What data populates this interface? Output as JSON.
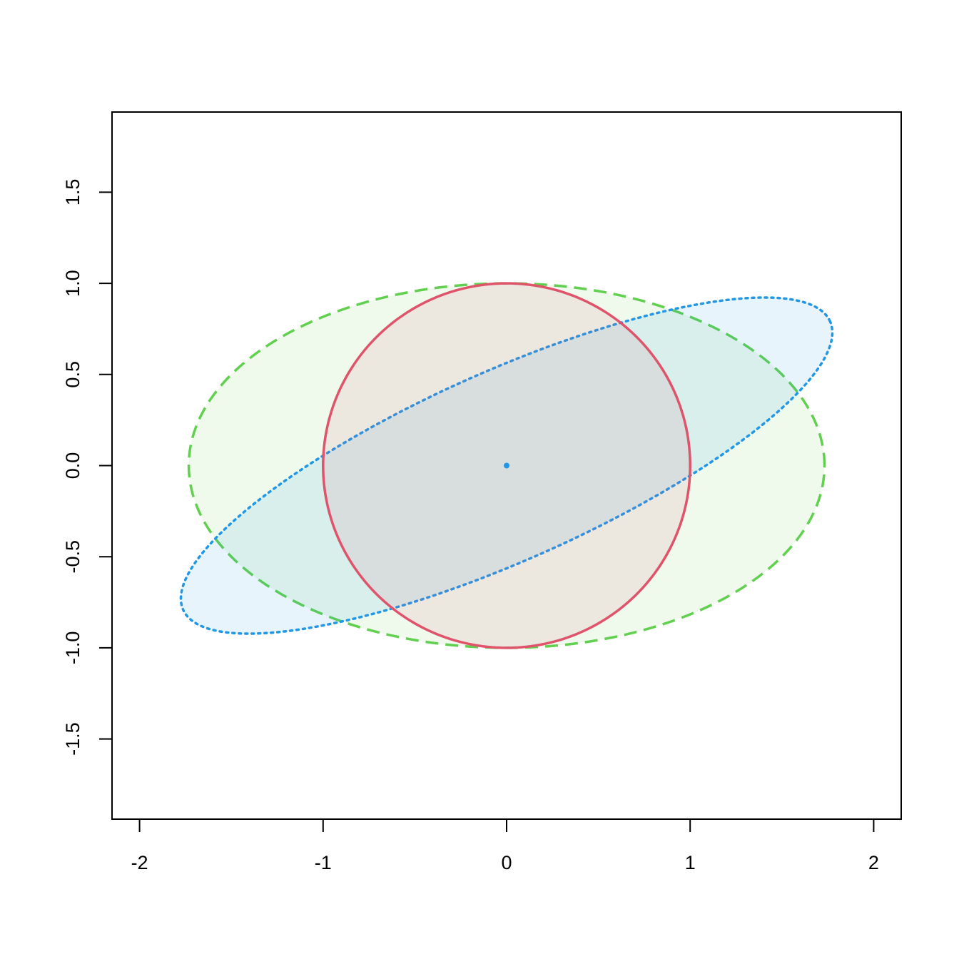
{
  "chart_data": {
    "type": "scatter",
    "title": "",
    "xlabel": "",
    "ylabel": "",
    "xlim": [
      -2.15,
      2.15
    ],
    "ylim": [
      -1.94,
      1.94
    ],
    "x_ticks": [
      -2,
      -1,
      0,
      1,
      2
    ],
    "x_tick_labels": [
      "-2",
      "-1",
      "0",
      "1",
      "2"
    ],
    "y_ticks": [
      -1.5,
      -1.0,
      -0.5,
      0.0,
      0.5,
      1.0,
      1.5
    ],
    "y_tick_labels": [
      "-1.5",
      "-1.0",
      "-0.5",
      "0.0",
      "0.5",
      "1.0",
      "1.5"
    ],
    "grid": false,
    "legend": "none",
    "series": [
      {
        "shape": "ellipse",
        "center": [
          0,
          0
        ],
        "semi_axes": [
          1.732,
          1.0
        ],
        "rotation_deg": 0,
        "line_style": "dashed",
        "color": "#61D04F",
        "fill": "rgba(97,208,79,0.10)"
      },
      {
        "shape": "ellipse",
        "center": [
          0,
          0
        ],
        "semi_axes": [
          1.932,
          0.518
        ],
        "rotation_deg": 24.2,
        "line_style": "dotted",
        "color": "#2297E6",
        "fill": "rgba(34,151,230,0.11)"
      },
      {
        "shape": "circle",
        "center": [
          0,
          0
        ],
        "semi_axes": [
          1.0,
          1.0
        ],
        "rotation_deg": 0,
        "line_style": "solid",
        "color": "#DF536B",
        "fill": "rgba(223,83,107,0.11)"
      }
    ],
    "points": [
      {
        "x": 0,
        "y": 0,
        "color": "#2297E6"
      }
    ]
  }
}
